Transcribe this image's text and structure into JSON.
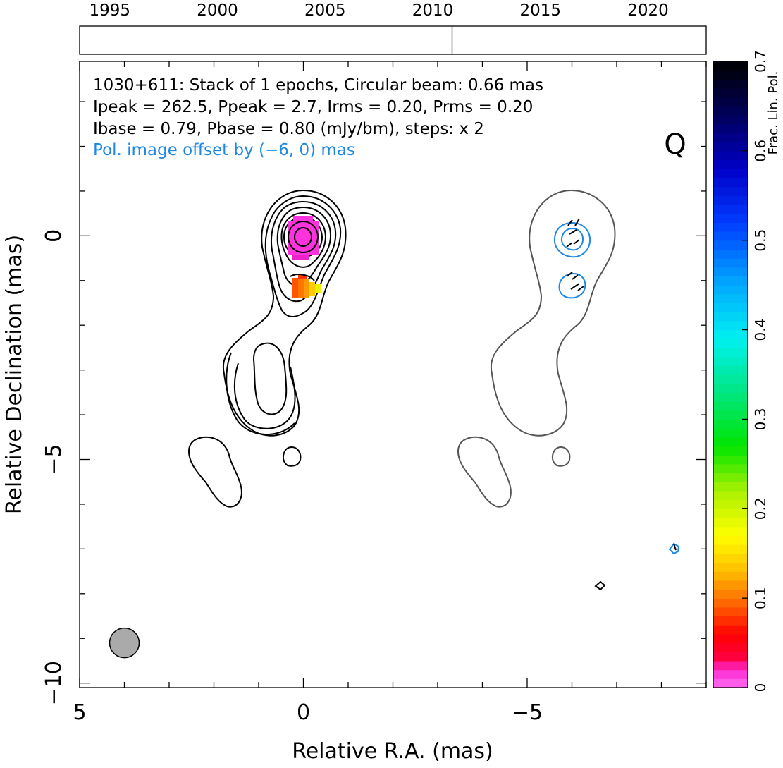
{
  "chart_data": {
    "type": "contour",
    "source_name": "1030+611",
    "band_label": "Q",
    "info_lines": [
      "1030+611: Stack of 1 epochs, Circular beam: 0.66 mas",
      "Ipeak = 262.5, Ppeak = 2.7, Irms = 0.20, Prms = 0.20",
      "Ibase = 0.79, Pbase = 0.80 (mJy/bm), steps: x 2"
    ],
    "offset_note": "Pol. image offset by (−6, 0) mas",
    "xlabel": "Relative R.A. (mas)",
    "ylabel": "Relative Declination (mas)",
    "xlim": [
      5,
      -9
    ],
    "ylim": [
      -10.1,
      3.9
    ],
    "x_ticks": [
      {
        "value": 5,
        "label": "5"
      },
      {
        "value": 0,
        "label": "0"
      },
      {
        "value": -5,
        "label": "−5"
      }
    ],
    "y_ticks": [
      {
        "value": 0,
        "label": "0"
      },
      {
        "value": -5,
        "label": "−5"
      },
      {
        "value": -10,
        "label": "−10"
      }
    ],
    "timeline": {
      "range": [
        1993.6,
        2022.7
      ],
      "year_labels": [
        "1995",
        "2000",
        "2005",
        "2010",
        "2015",
        "2020"
      ],
      "year_values": [
        1995,
        2000,
        2005,
        2010,
        2015,
        2020
      ],
      "epoch_marks": [
        2010.9
      ]
    },
    "colorbar": {
      "label": "Frac. Lin. Pol.",
      "range": [
        0,
        0.7
      ],
      "tick_labels": [
        "0",
        "0.1",
        "0.2",
        "0.3",
        "0.4",
        "0.5",
        "0.6",
        "0.7"
      ],
      "tick_values": [
        0,
        0.1,
        0.2,
        0.3,
        0.4,
        0.5,
        0.6,
        0.7
      ]
    },
    "beam": {
      "ra": 4.0,
      "dec": -9.1,
      "diameter_mas": 0.66,
      "color": "#aaaaaa"
    },
    "colors": {
      "total_intensity_contour": "#000000",
      "polarized_base_contour": "#555555",
      "polarized_contour": "#1e88e5",
      "evpa_ticks": "#000000",
      "offset_note": "#1e88e5"
    }
  }
}
